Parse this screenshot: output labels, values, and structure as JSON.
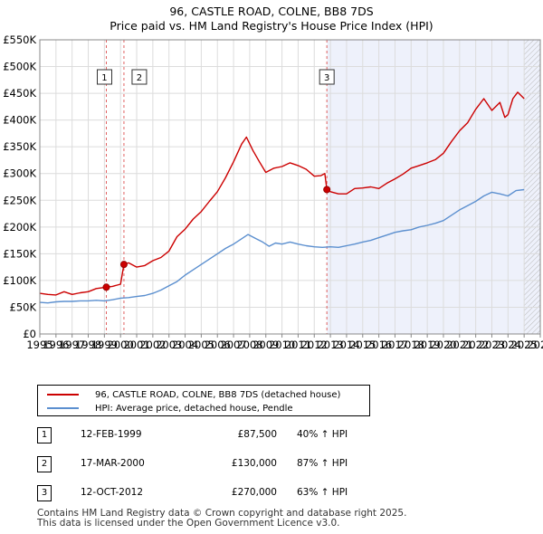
{
  "chart_data": {
    "type": "line",
    "title": "96, CASTLE ROAD, COLNE, BB8 7DS",
    "subtitle": "Price paid vs. HM Land Registry's House Price Index (HPI)",
    "xlim": [
      1995,
      2026
    ],
    "ylim": [
      0,
      550000
    ],
    "x_ticks": [
      "1995",
      "1996",
      "1997",
      "1998",
      "1999",
      "2000",
      "2001",
      "2002",
      "2003",
      "2004",
      "2005",
      "2006",
      "2007",
      "2008",
      "2009",
      "2010",
      "2011",
      "2012",
      "2013",
      "2014",
      "2015",
      "2016",
      "2017",
      "2018",
      "2019",
      "2020",
      "2021",
      "2022",
      "2023",
      "2024",
      "2025",
      "2026"
    ],
    "y_ticks": [
      {
        "value": 0,
        "label": "£0"
      },
      {
        "value": 50000,
        "label": "£50K"
      },
      {
        "value": 100000,
        "label": "£100K"
      },
      {
        "value": 150000,
        "label": "£150K"
      },
      {
        "value": 200000,
        "label": "£200K"
      },
      {
        "value": 250000,
        "label": "£250K"
      },
      {
        "value": 300000,
        "label": "£300K"
      },
      {
        "value": 350000,
        "label": "£350K"
      },
      {
        "value": 400000,
        "label": "£400K"
      },
      {
        "value": 450000,
        "label": "£450K"
      },
      {
        "value": 500000,
        "label": "£500K"
      },
      {
        "value": 550000,
        "label": "£550K"
      }
    ],
    "grid": true,
    "shaded_range": [
      2012.78,
      2026
    ],
    "projection_start": 2025.0,
    "series": [
      {
        "name": "96, CASTLE ROAD, COLNE, BB8 7DS (detached house)",
        "color": "#cc0000",
        "points": [
          [
            1995.0,
            76000
          ],
          [
            1995.5,
            74000
          ],
          [
            1996.0,
            73000
          ],
          [
            1996.5,
            79000
          ],
          [
            1997.0,
            74000
          ],
          [
            1997.5,
            77000
          ],
          [
            1998.0,
            79000
          ],
          [
            1998.5,
            85000
          ],
          [
            1999.12,
            87500
          ],
          [
            1999.5,
            89000
          ],
          [
            2000.0,
            93000
          ],
          [
            2000.21,
            130000
          ],
          [
            2000.5,
            133000
          ],
          [
            2001.0,
            125000
          ],
          [
            2001.5,
            128000
          ],
          [
            2002.0,
            137000
          ],
          [
            2002.5,
            143000
          ],
          [
            2003.0,
            155000
          ],
          [
            2003.5,
            182000
          ],
          [
            2004.0,
            196000
          ],
          [
            2004.5,
            215000
          ],
          [
            2005.0,
            229000
          ],
          [
            2005.5,
            248000
          ],
          [
            2006.0,
            266000
          ],
          [
            2006.5,
            292000
          ],
          [
            2007.0,
            322000
          ],
          [
            2007.5,
            355000
          ],
          [
            2007.8,
            368000
          ],
          [
            2008.2,
            343000
          ],
          [
            2008.6,
            322000
          ],
          [
            2009.0,
            302000
          ],
          [
            2009.5,
            310000
          ],
          [
            2010.0,
            313000
          ],
          [
            2010.5,
            320000
          ],
          [
            2011.0,
            315000
          ],
          [
            2011.5,
            308000
          ],
          [
            2012.0,
            295000
          ],
          [
            2012.4,
            296000
          ],
          [
            2012.65,
            300000
          ],
          [
            2012.78,
            270000
          ],
          [
            2013.0,
            266000
          ],
          [
            2013.5,
            262000
          ],
          [
            2014.0,
            262000
          ],
          [
            2014.5,
            272000
          ],
          [
            2015.0,
            273000
          ],
          [
            2015.5,
            275000
          ],
          [
            2016.0,
            272000
          ],
          [
            2016.5,
            282000
          ],
          [
            2017.0,
            290000
          ],
          [
            2017.5,
            299000
          ],
          [
            2018.0,
            310000
          ],
          [
            2018.5,
            315000
          ],
          [
            2019.0,
            320000
          ],
          [
            2019.5,
            326000
          ],
          [
            2020.0,
            338000
          ],
          [
            2020.5,
            360000
          ],
          [
            2021.0,
            380000
          ],
          [
            2021.5,
            395000
          ],
          [
            2022.0,
            420000
          ],
          [
            2022.5,
            440000
          ],
          [
            2023.0,
            418000
          ],
          [
            2023.5,
            433000
          ],
          [
            2023.8,
            405000
          ],
          [
            2024.0,
            410000
          ],
          [
            2024.3,
            440000
          ],
          [
            2024.6,
            452000
          ],
          [
            2025.0,
            440000
          ]
        ]
      },
      {
        "name": "HPI: Average price, detached house, Pendle",
        "color": "#5b8fcf",
        "points": [
          [
            1995.0,
            59000
          ],
          [
            1995.5,
            58000
          ],
          [
            1996.0,
            60000
          ],
          [
            1996.5,
            61000
          ],
          [
            1997.0,
            61000
          ],
          [
            1997.5,
            62000
          ],
          [
            1998.0,
            62000
          ],
          [
            1998.5,
            63000
          ],
          [
            1999.0,
            62000
          ],
          [
            1999.5,
            64000
          ],
          [
            2000.0,
            67000
          ],
          [
            2000.5,
            68000
          ],
          [
            2001.0,
            70000
          ],
          [
            2001.5,
            72000
          ],
          [
            2002.0,
            76000
          ],
          [
            2002.5,
            82000
          ],
          [
            2003.0,
            90000
          ],
          [
            2003.5,
            98000
          ],
          [
            2004.0,
            110000
          ],
          [
            2004.5,
            120000
          ],
          [
            2005.0,
            130000
          ],
          [
            2005.5,
            140000
          ],
          [
            2006.0,
            150000
          ],
          [
            2006.5,
            160000
          ],
          [
            2007.0,
            168000
          ],
          [
            2007.5,
            178000
          ],
          [
            2007.9,
            186000
          ],
          [
            2008.4,
            178000
          ],
          [
            2008.8,
            172000
          ],
          [
            2009.2,
            164000
          ],
          [
            2009.6,
            170000
          ],
          [
            2010.0,
            168000
          ],
          [
            2010.5,
            172000
          ],
          [
            2011.0,
            168000
          ],
          [
            2011.5,
            165000
          ],
          [
            2012.0,
            163000
          ],
          [
            2012.5,
            162000
          ],
          [
            2013.0,
            163000
          ],
          [
            2013.5,
            162000
          ],
          [
            2014.0,
            165000
          ],
          [
            2014.5,
            168000
          ],
          [
            2015.0,
            172000
          ],
          [
            2015.5,
            175000
          ],
          [
            2016.0,
            180000
          ],
          [
            2016.5,
            185000
          ],
          [
            2017.0,
            190000
          ],
          [
            2017.5,
            193000
          ],
          [
            2018.0,
            195000
          ],
          [
            2018.5,
            200000
          ],
          [
            2019.0,
            203000
          ],
          [
            2019.5,
            207000
          ],
          [
            2020.0,
            212000
          ],
          [
            2020.5,
            222000
          ],
          [
            2021.0,
            232000
          ],
          [
            2021.5,
            240000
          ],
          [
            2022.0,
            248000
          ],
          [
            2022.5,
            258000
          ],
          [
            2023.0,
            265000
          ],
          [
            2023.5,
            262000
          ],
          [
            2024.0,
            258000
          ],
          [
            2024.5,
            268000
          ],
          [
            2025.0,
            270000
          ]
        ]
      }
    ],
    "sale_markers": [
      {
        "id": "1",
        "x": 1999.12,
        "value": 87500
      },
      {
        "id": "2",
        "x": 2000.21,
        "value": 130000
      },
      {
        "id": "3",
        "x": 2012.78,
        "value": 270000
      }
    ]
  },
  "legend": {
    "property_label": "96, CASTLE ROAD, COLNE, BB8 7DS (detached house)",
    "hpi_label": "HPI: Average price, detached house, Pendle",
    "property_color": "#cc0000",
    "hpi_color": "#5b8fcf"
  },
  "sales": [
    {
      "num": "1",
      "date": "12-FEB-1999",
      "price": "£87,500",
      "hpi": "40% ↑ HPI"
    },
    {
      "num": "2",
      "date": "17-MAR-2000",
      "price": "£130,000",
      "hpi": "87% ↑ HPI"
    },
    {
      "num": "3",
      "date": "12-OCT-2012",
      "price": "£270,000",
      "hpi": "63% ↑ HPI"
    }
  ],
  "footer": {
    "line1": "Contains HM Land Registry data © Crown copyright and database right 2025.",
    "line2": "This data is licensed under the Open Government Licence v3.0."
  }
}
